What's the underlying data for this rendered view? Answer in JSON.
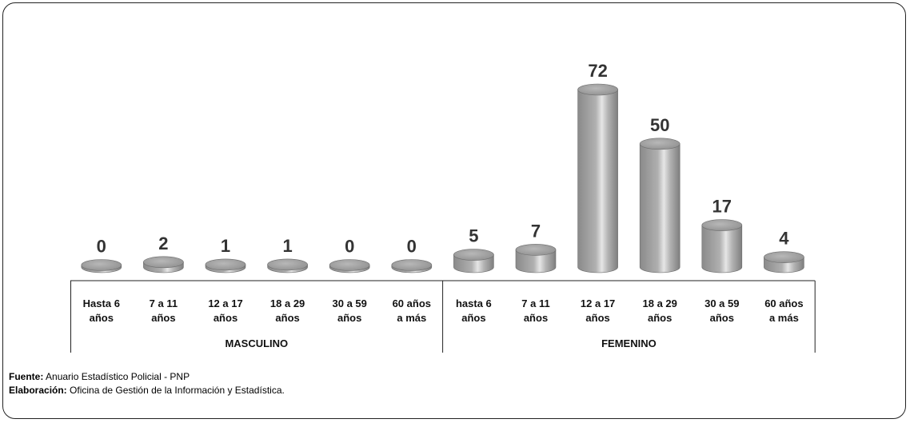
{
  "chart_data": {
    "type": "bar",
    "title": "",
    "xlabel": "",
    "ylabel": "",
    "groups": [
      {
        "name": "MASCULINO",
        "categories": [
          "Hasta 6 años",
          "7 a 11 años",
          "12 a 17 años",
          "18 a 29 años",
          "30 a 59 años",
          "60 años a más"
        ],
        "values": [
          0,
          2,
          1,
          1,
          0,
          0
        ]
      },
      {
        "name": "FEMENINO",
        "categories": [
          "hasta 6 años",
          "7 a 11 años",
          "12 a 17 años",
          "18 a 29 años",
          "30 a 59 años",
          "60 años a más"
        ],
        "values": [
          5,
          7,
          72,
          50,
          17,
          4
        ]
      }
    ],
    "category_lines": [
      [
        "Hasta 6",
        "años"
      ],
      [
        "7 a 11",
        "años"
      ],
      [
        "12 a 17",
        "años"
      ],
      [
        "18 a 29",
        "años"
      ],
      [
        "30 a 59",
        "años"
      ],
      [
        "60 años",
        "a más"
      ],
      [
        "hasta 6",
        "años"
      ],
      [
        "7 a 11",
        "años"
      ],
      [
        "12 a 17",
        "años"
      ],
      [
        "18 a 29",
        "años"
      ],
      [
        "30 a 59",
        "años"
      ],
      [
        "60 años",
        "a más"
      ]
    ],
    "values": [
      0,
      2,
      1,
      1,
      0,
      0,
      5,
      7,
      72,
      50,
      17,
      4
    ],
    "ylim": [
      0,
      72
    ],
    "grid": false,
    "bar_color": "#9a9a9a"
  },
  "footer": {
    "source_label": "Fuente:",
    "source_text": " Anuario Estadístico Policial - PNP",
    "credit_label": "Elaboración:",
    "credit_text": " Oficina de Gestión de la Información y Estadística."
  }
}
